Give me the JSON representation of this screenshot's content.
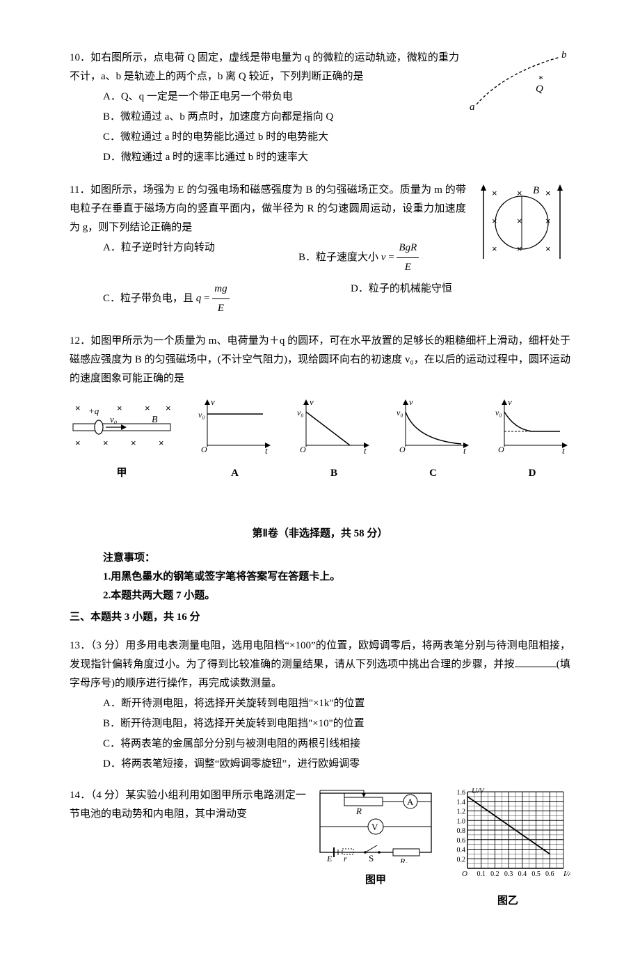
{
  "q10": {
    "stem": "10．如右图所示，点电荷 Q 固定，虚线是带电量为 q 的微粒的运动轨迹，微粒的重力不计，a、b 是轨迹上的两个点，b 离 Q 较近，下列判断正确的是",
    "A": "A．Q、q 一定是一个带正电另一个带负电",
    "B": "B．微粒通过 a、b 两点时，加速度方向都是指向 Q",
    "C": "C．微粒通过 a 时的电势能比通过 b 时的电势能大",
    "D": "D．微粒通过 a 时的速率比通过 b 时的速率大",
    "fig": {
      "a": "a",
      "b": "b",
      "Q": "Q"
    }
  },
  "q11": {
    "stem": "11．如图所示，场强为 E 的匀强电场和磁感强度为 B 的匀强磁场正交。质量为 m 的带电粒子在垂直于磁场方向的竖直平面内，做半径为 R 的匀速圆周运动，设重力加速度为 g，则下列结论正确的是",
    "A": "A．粒子逆时针方向转动",
    "B_pre": "B．粒子速度大小 ",
    "B_num": "BgR",
    "B_den": "E",
    "C_pre": "C．粒子带负电，且 ",
    "C_num": "mg",
    "C_den": "E",
    "D": "D．粒子的机械能守恒",
    "fig": {
      "B": "B"
    }
  },
  "q12": {
    "stem": "12．如图甲所示为一个质量为 m、电荷量为＋q 的圆环，可在水平放置的足够长的粗糙细杆上滑动，细杆处于磁感应强度为 B 的匀强磁场中，(不计空气阻力)，现给圆环向右的初速度 v₀，在以后的运动过程中，圆环运动的速度图象可能正确的是",
    "jia": "甲",
    "labels": {
      "A": "A",
      "B": "B",
      "C": "C",
      "D": "D"
    },
    "axes": {
      "v": "v",
      "t": "t",
      "v0": "v₀",
      "O": "O"
    },
    "setup": {
      "q": "+q",
      "v0": "v₀",
      "B": "B"
    }
  },
  "section2": "第Ⅱ卷（非选择题，共 58 分）",
  "notice_head": "注意事项：",
  "notice1": "1.用黑色墨水的钢笔或签字笔将答案写在答题卡上。",
  "notice2": "2.本题共两大题 7 小题。",
  "part3": "三、本题共 3 小题，共 16 分",
  "q13": {
    "stem_a": "13．（3 分）用多用电表测量电阻，选用电阻档“×100”的位置，欧姆调零后，将两表笔分别与待测电阻相接，发现指针偏转角度过小。为了得到比较准确的测量结果，请从下列选项中挑出合理的步骤，并按",
    "stem_b": "(填字母序号)的顺序进行操作，再完成读数测量。",
    "A": "A．断开待测电阻，将选择开关旋转到电阻挡\"×1k\"的位置",
    "B": "B．断开待测电阻，将选择开关旋转到电阻挡\"×10\"的位置",
    "C": "C．将两表笔的金属部分分别与被测电阻的两根引线相接",
    "D": "D．将两表笔短接，调整“欧姆调零旋钮”，进行欧姆调零"
  },
  "q14": {
    "stem": "14．（4 分）某实验小组利用如图甲所示电路测定一节电池的电动势和内电阻，其中滑动变",
    "jia": "图甲",
    "yi": "图乙",
    "circuit": {
      "R": "R",
      "A": "A",
      "V": "V",
      "E": "E",
      "r": "r",
      "S": "S",
      "R0": "R₀"
    },
    "chart": {
      "ylabel": "U/V",
      "xlabel": "I/A",
      "yticks": [
        "0.2",
        "0.4",
        "0.6",
        "0.8",
        "1.0",
        "1.2",
        "1.4",
        "1.6"
      ],
      "xticks": [
        "0.1",
        "0.2",
        "0.3",
        "0.4",
        "0.5",
        "0.6"
      ],
      "O": "O",
      "y_max": 1.6,
      "x_max": 0.7,
      "line_x1": 0,
      "line_y1": 1.5,
      "line_x2": 0.6,
      "line_y2": 0.3,
      "grid_major": "#000000",
      "plot_bg": "#ffffff"
    }
  },
  "colors": {
    "text": "#000000",
    "bg": "#ffffff"
  }
}
